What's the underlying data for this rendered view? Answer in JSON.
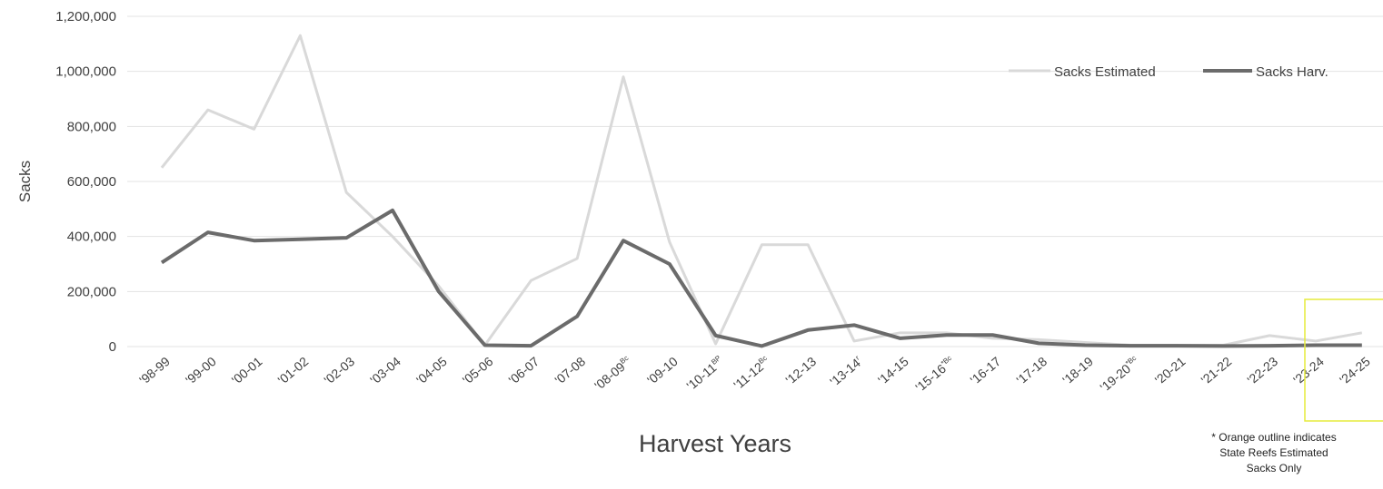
{
  "chart_data": {
    "type": "line",
    "ylabel": "Sacks",
    "xlabel": "Harvest Years",
    "ylim": [
      0,
      1200000
    ],
    "yticks": [
      0,
      200000,
      400000,
      600000,
      800000,
      1000000,
      1200000
    ],
    "ytick_labels": [
      "0",
      "200,000",
      "400,000",
      "600,000",
      "800,000",
      "1,000,000",
      "1,200,000"
    ],
    "grid": true,
    "legend_position": "top-right",
    "categories": [
      "'98-99",
      "'99-00",
      "'00-01",
      "'01-02",
      "'02-03",
      "'03-04",
      "'04-05",
      "'05-06",
      "'06-07",
      "'07-08",
      "'08-09",
      "'09-10",
      "'10-11",
      "'11-12",
      "'12-13",
      "'13-14",
      "'14-15",
      "'15-16",
      "'16-17",
      "'17-18",
      "'18-19",
      "'19-20",
      "'20-21",
      "'21-22",
      "'22-23",
      "'23-24",
      "'24-25"
    ],
    "category_superscripts": [
      "",
      "",
      "",
      "",
      "",
      "",
      "",
      "",
      "",
      "",
      "Bc",
      "",
      "BP",
      "Bc",
      "",
      "r",
      "",
      "*Bc",
      "",
      "",
      "",
      "*Bc",
      "",
      "",
      "",
      "",
      ""
    ],
    "series": [
      {
        "name": "Sacks Estimated",
        "color": "#d9d9d9",
        "values": [
          650000,
          860000,
          790000,
          1130000,
          560000,
          400000,
          220000,
          5000,
          240000,
          320000,
          980000,
          380000,
          10000,
          370000,
          370000,
          20000,
          50000,
          50000,
          30000,
          25000,
          15000,
          5000,
          5000,
          5000,
          40000,
          20000,
          50000
        ]
      },
      {
        "name": "Sacks Harv.",
        "color": "#6b6b6b",
        "values": [
          305000,
          415000,
          385000,
          390000,
          395000,
          495000,
          200000,
          5000,
          3000,
          110000,
          385000,
          300000,
          40000,
          2000,
          60000,
          78000,
          30000,
          42000,
          42000,
          12000,
          5000,
          3000,
          3000,
          2000,
          3000,
          5000,
          5000
        ]
      }
    ],
    "highlight_box": {
      "color": "#e6ec3c",
      "categories": [
        "'23-24",
        "'24-25"
      ]
    },
    "note": [
      "* Orange outline indicates",
      "State Reefs Estimated",
      "Sacks Only"
    ]
  }
}
